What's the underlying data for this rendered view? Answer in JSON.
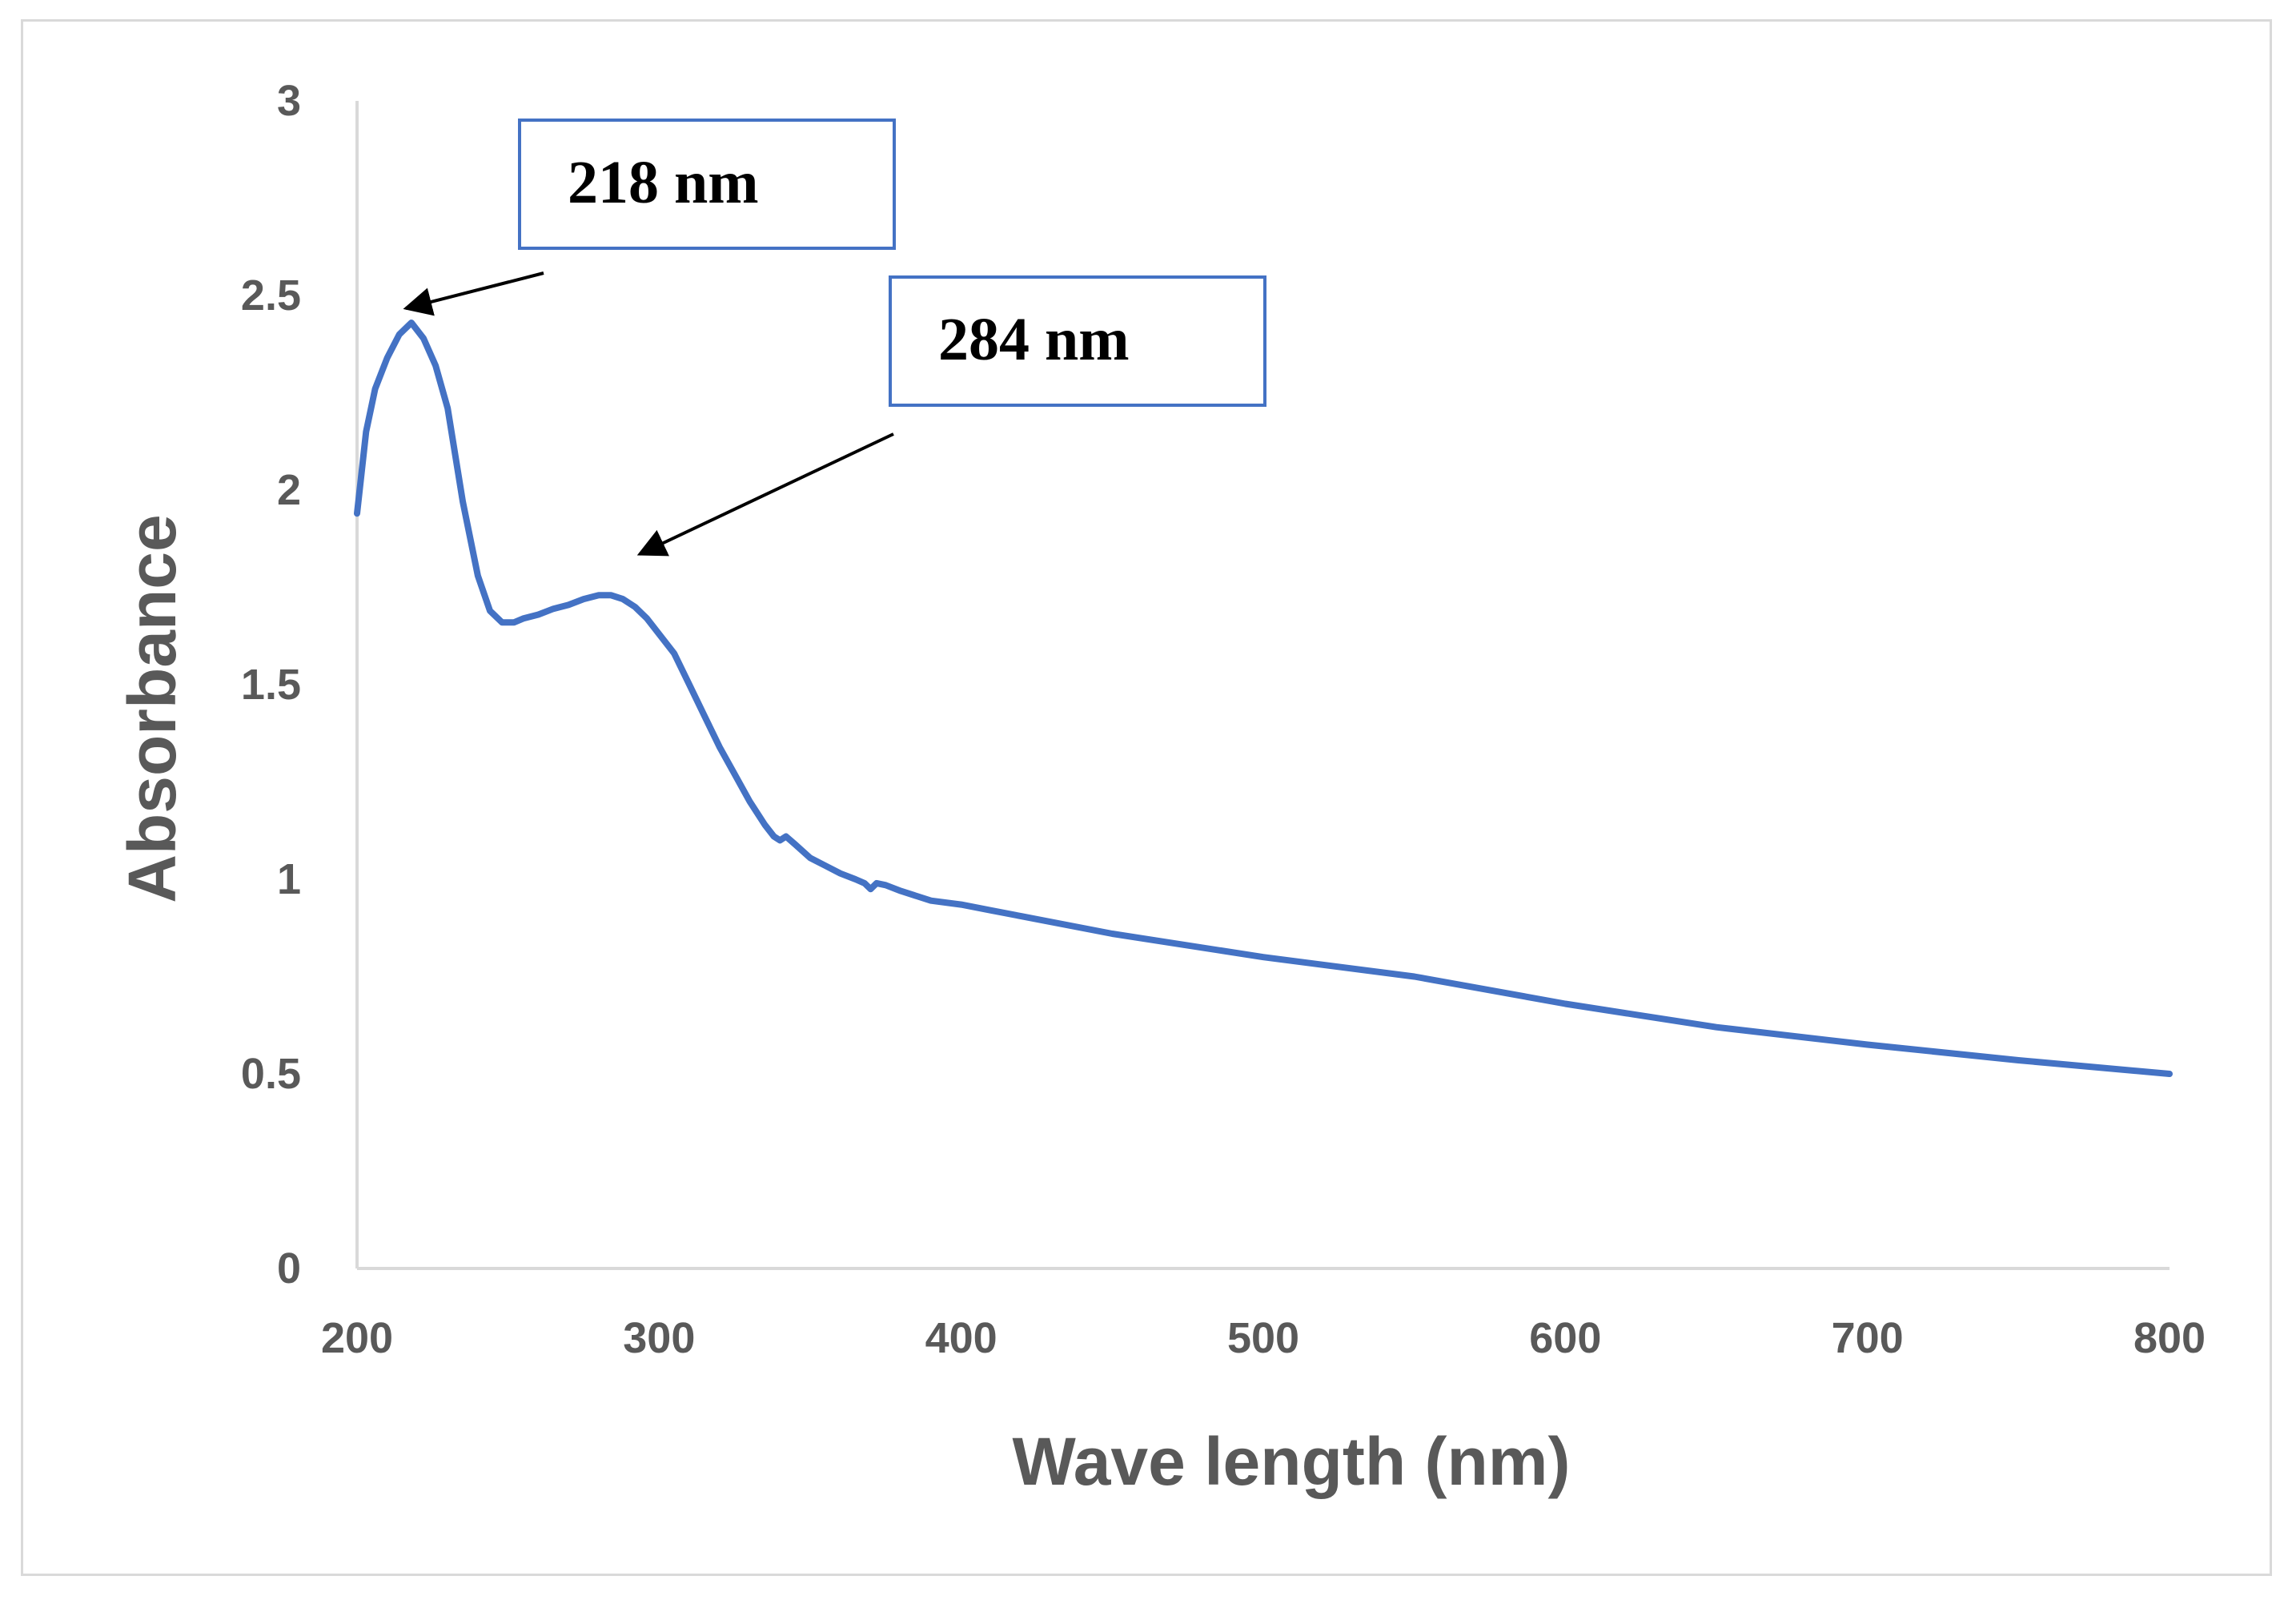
{
  "chart_data": {
    "type": "line",
    "title": "",
    "xlabel": "Wave length (nm)",
    "ylabel": "Absorbance",
    "xlim": [
      200,
      800
    ],
    "ylim": [
      0,
      3
    ],
    "xticks": [
      200,
      300,
      400,
      500,
      600,
      700,
      800
    ],
    "yticks": [
      0,
      0.5,
      1,
      1.5,
      2,
      2.5,
      3
    ],
    "ytick_labels": [
      "0",
      "0.5",
      "1",
      "1.5",
      "2",
      "2.5",
      "3"
    ],
    "grid": false,
    "series": [
      {
        "name": "Absorbance",
        "color": "#4472c4",
        "x": [
          200,
          203,
          206,
          210,
          214,
          218,
          222,
          226,
          230,
          235,
          240,
          244,
          248,
          252,
          255,
          260,
          265,
          270,
          275,
          280,
          284,
          288,
          292,
          296,
          300,
          305,
          310,
          315,
          320,
          325,
          330,
          335,
          338,
          340,
          342,
          345,
          350,
          355,
          360,
          365,
          368,
          370,
          372,
          375,
          380,
          390,
          400,
          410,
          420,
          450,
          500,
          550,
          600,
          650,
          700,
          750,
          800
        ],
        "y": [
          1.94,
          2.15,
          2.26,
          2.34,
          2.4,
          2.43,
          2.39,
          2.32,
          2.21,
          1.97,
          1.78,
          1.69,
          1.66,
          1.66,
          1.67,
          1.68,
          1.695,
          1.705,
          1.72,
          1.73,
          1.73,
          1.72,
          1.7,
          1.67,
          1.63,
          1.58,
          1.5,
          1.42,
          1.34,
          1.27,
          1.2,
          1.14,
          1.11,
          1.1,
          1.11,
          1.09,
          1.055,
          1.035,
          1.015,
          1.0,
          0.99,
          0.975,
          0.99,
          0.985,
          0.97,
          0.945,
          0.935,
          0.92,
          0.905,
          0.86,
          0.8,
          0.75,
          0.68,
          0.62,
          0.575,
          0.535,
          0.5
        ]
      }
    ],
    "annotations": [
      {
        "label": "218 nm",
        "x": 218,
        "y": 2.43
      },
      {
        "label": "284 nm",
        "x": 284,
        "y": 1.73
      }
    ]
  },
  "colors": {
    "line": "#4472c4",
    "axis": "#d9d9d9",
    "text": "#595959",
    "callout_border": "#4472c4"
  }
}
